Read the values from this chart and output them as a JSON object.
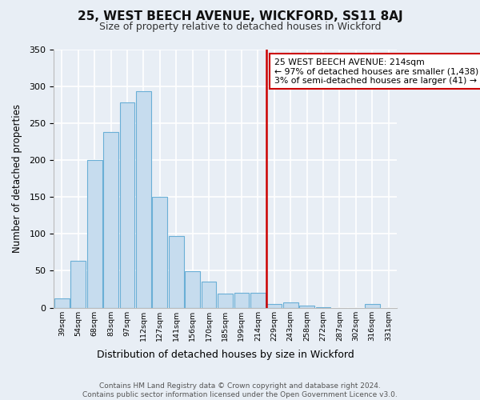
{
  "title": "25, WEST BEECH AVENUE, WICKFORD, SS11 8AJ",
  "subtitle": "Size of property relative to detached houses in Wickford",
  "xlabel": "Distribution of detached houses by size in Wickford",
  "ylabel": "Number of detached properties",
  "bin_labels": [
    "39sqm",
    "54sqm",
    "68sqm",
    "83sqm",
    "97sqm",
    "112sqm",
    "127sqm",
    "141sqm",
    "156sqm",
    "170sqm",
    "185sqm",
    "199sqm",
    "214sqm",
    "229sqm",
    "243sqm",
    "258sqm",
    "272sqm",
    "287sqm",
    "302sqm",
    "316sqm",
    "331sqm"
  ],
  "bar_heights": [
    13,
    64,
    200,
    238,
    278,
    293,
    150,
    97,
    49,
    35,
    19,
    20,
    20,
    5,
    7,
    3,
    1,
    0,
    0,
    5,
    0
  ],
  "bar_color": "#c6dcee",
  "bar_edge_color": "#6aafd6",
  "vline_color": "#cc0000",
  "vline_pos": 12.5,
  "annotation_title": "25 WEST BEECH AVENUE: 214sqm",
  "annotation_line1": "← 97% of detached houses are smaller (1,438)",
  "annotation_line2": "3% of semi-detached houses are larger (41) →",
  "annotation_box_edge": "#cc0000",
  "ylim": [
    0,
    350
  ],
  "yticks": [
    0,
    50,
    100,
    150,
    200,
    250,
    300,
    350
  ],
  "footer_line1": "Contains HM Land Registry data © Crown copyright and database right 2024.",
  "footer_line2": "Contains public sector information licensed under the Open Government Licence v3.0.",
  "background_color": "#e8eef5"
}
